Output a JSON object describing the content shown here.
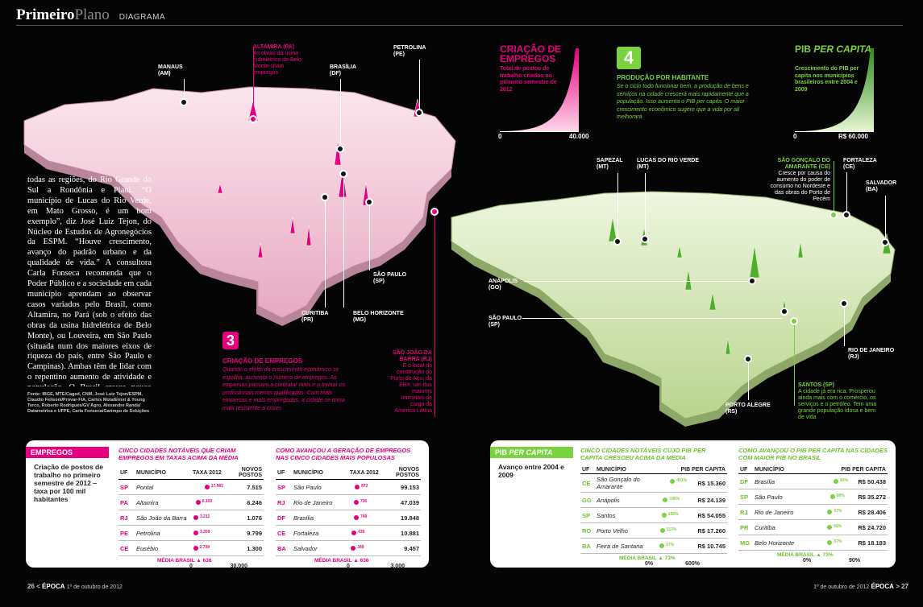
{
  "header": {
    "brand_bold": "Primeiro",
    "brand_light": "Plano",
    "section": "DIAGRAMA"
  },
  "left_map": {
    "labels": [
      {
        "name": "MANAUS",
        "state": "(AM)"
      },
      {
        "name": "ALTAMIRA (PA)",
        "note": "As obras da usina hidrelétrica de Belo Monte criam empregos"
      },
      {
        "name": "BRASÍLIA",
        "state": "(DF)"
      },
      {
        "name": "PETROLINA",
        "state": "(PE)"
      },
      {
        "name": "SÃO PAULO",
        "state": "(SP)"
      },
      {
        "name": "CURITIBA",
        "state": "(PR)"
      },
      {
        "name": "BELO HORIZONTE",
        "state": "(MG)"
      },
      {
        "name": "SÃO JOÃO DA BARRA (RJ)",
        "note": "É o local da construção do Porto do Açu, da EBX, um dos maiores terminais de carga da América Latina"
      }
    ]
  },
  "body_text": "todas as regiões, do Rio Grande do Sul a Rondônia e Piauí. “O município de Lucas do Rio Verde, em Mato Grosso, é um bom exemplo”, diz José Luiz Tejon, do Núcleo de Estudos de Agronegócios da ESPM. “Houve crescimento, avanço do padrão urbano e da qualidade de vida.” A consultora Carla Fonseca recomenda que o Poder Público e a sociedade em cada município aprendam ao observar casos variados pelo Brasil, como Altamira, no Pará (sob o efeito das obras da usina hidrelétrica de Belo Monte), ou Louveira, em São Paulo (situada num dos maiores eixos de riqueza do país, entre São Paulo e Campinas). Ambas têm de lidar com o repentino aumento de atividade e população. O Brasil cresce pouco em 2012, mas tem boa chance de acelerar em 2013. Algumas cidades colherão os melhores frutos desse crescimento.",
  "sources": "Fonte: IBGE, MTE/Caged, CNM, José Luiz Tejon/ESPM, Claudio Felisoni/Provar-FIA, Carlos Mota/Ernst & Young Terco, Roberto Rodrigues/GV Agro, Alexandre Rands/ Datametrica e UFPE, Carla Fonseca/Garimpo de Soluções",
  "step3": {
    "number": "3",
    "title": "CRIAÇÃO DE EMPREGOS",
    "text": "Quando o efeito do crescimento econômico se espalha, aumenta o número de empregos. As empresas passam a contratar mais e a treinar os profissionais menos qualificados. Com mais empresas e mais empregados, a cidade se torna mais resistente a crises"
  },
  "legend_jobs": {
    "title": "CRIAÇÃO DE EMPREGOS",
    "subtitle": "Total de postos de trabalho criados no primeiro semestre de 2012",
    "min": "0",
    "max": "40.000"
  },
  "step4": {
    "number": "4",
    "title": "PRODUÇÃO POR HABITANTE",
    "text": "Se o ciclo todo funcionar bem, a produção de bens e serviços na cidade crescerá mais rapidamente que a população. Isso aumenta o PIB per capita. O maior crescimento econômico sugere que a vida por ali melhorará"
  },
  "legend_pib": {
    "title_a": "PIB ",
    "title_b": "PER CAPITA",
    "subtitle": "Crescimento do PIB per capita nos municípios brasileiros entre 2004 e 2009",
    "min": "0",
    "max": "R$ 60.000"
  },
  "right_map": {
    "labels": [
      {
        "name": "SAPEZAL",
        "state": "(MT)"
      },
      {
        "name": "LUCAS DO RIO VERDE",
        "state": "(MT)"
      },
      {
        "name": "SÃO GONÇALO DO AMARANTE (CE)",
        "note": "Cresce por causa do aumento do poder de consumo no Nordeste e das obras do Porto de Pecém"
      },
      {
        "name": "FORTALEZA",
        "state": "(CE)"
      },
      {
        "name": "SALVADOR",
        "state": "(BA)"
      },
      {
        "name": "ANÁPOLIS",
        "state": "(GO)"
      },
      {
        "name": "SÃO PAULO",
        "state": "(SP)"
      },
      {
        "name": "RIO DE JANEIRO",
        "state": "(RJ)"
      },
      {
        "name": "SANTOS (SP)",
        "note": "A cidade já era rica. Prosperou ainda mais com o comércio, os serviços e o petróleo. Tem uma grande população idosa e bem de vida"
      },
      {
        "name": "PORTO ALEGRE",
        "state": "(RS)"
      }
    ]
  },
  "empregos_panel": {
    "tag": "EMPREGOS",
    "desc": "Criação de postos de trabalho no primeiro semestre de 2012 – taxa por 100 mil habitantes",
    "table1": {
      "title": "CINCO CIDADES NOTÁVEIS QUE CRIAM EMPREGOS EM TAXAS ACIMA DA MÉDIA",
      "headers": [
        "UF",
        "MUNICÍPIO",
        "TAXA 2012",
        "NOVOS POSTOS"
      ],
      "rows": [
        {
          "uf": "SP",
          "city": "Pontal",
          "rate": "17.961",
          "rate_value": 17961,
          "jobs": "7.515"
        },
        {
          "uf": "PA",
          "city": "Altamira",
          "rate": "6.103",
          "rate_value": 6103,
          "jobs": "6.246"
        },
        {
          "uf": "RJ",
          "city": "São João da Barra",
          "rate": "3.211",
          "rate_value": 3211,
          "jobs": "1.076"
        },
        {
          "uf": "PE",
          "city": "Petrolina",
          "rate": "3.209",
          "rate_value": 3209,
          "jobs": "9.799"
        },
        {
          "uf": "CE",
          "city": "Eusébio",
          "rate": "2.709",
          "rate_value": 2709,
          "jobs": "1.300"
        }
      ],
      "avg_label": "MÉDIA BRASIL",
      "avg_value": "636",
      "axis_min": "0",
      "axis_max": "30.000",
      "axis_max_value": 30000
    },
    "table2": {
      "title": "COMO AVANÇOU A GERAÇÃO DE EMPREGOS NAS CINCO CIDADES MAIS POPULOSAS",
      "headers": [
        "UF",
        "MUNICÍPIO",
        "TAXA 2012",
        "NOVOS POSTOS"
      ],
      "rows": [
        {
          "uf": "SP",
          "city": "São Paulo",
          "rate": "872",
          "rate_value": 872,
          "jobs": "99.153"
        },
        {
          "uf": "RJ",
          "city": "Rio de Janeiro",
          "rate": "736",
          "rate_value": 736,
          "jobs": "47.039"
        },
        {
          "uf": "DF",
          "city": "Brasília",
          "rate": "749",
          "rate_value": 749,
          "jobs": "19.848"
        },
        {
          "uf": "CE",
          "city": "Fortaleza",
          "rate": "435",
          "rate_value": 435,
          "jobs": "10.881"
        },
        {
          "uf": "BA",
          "city": "Salvador",
          "rate": "349",
          "rate_value": 349,
          "jobs": "9.457"
        }
      ],
      "avg_label": "MÉDIA BRASIL",
      "avg_value": "636",
      "axis_min": "0",
      "axis_max": "3.000",
      "axis_max_value": 3000
    }
  },
  "pib_panel": {
    "tag_a": "PIB ",
    "tag_b": "PER CAPITA",
    "desc": "Avanço entre 2004 e 2009",
    "table1": {
      "title": "CINCO CIDADES NOTÁVEIS CUJO PIB PER CAPITA CRESCEU ACIMA DA MÉDIA",
      "headers": [
        "UF",
        "MUNICÍPIO",
        "PIB PER CAPITA"
      ],
      "rows": [
        {
          "uf": "CE",
          "city": "São Gonçalo do Amarante",
          "pct": "401%",
          "pct_value": 401,
          "value": "R$ 15.360"
        },
        {
          "uf": "GO",
          "city": "Anápolis",
          "pct": "195%",
          "pct_value": 195,
          "value": "R$ 24.139"
        },
        {
          "uf": "SP",
          "city": "Santos",
          "pct": "156%",
          "pct_value": 156,
          "value": "R$ 54.055"
        },
        {
          "uf": "RO",
          "city": "Porto Velho",
          "pct": "113%",
          "pct_value": 113,
          "value": "R$ 17.260"
        },
        {
          "uf": "BA",
          "city": "Feira de Santana",
          "pct": "97%",
          "pct_value": 97,
          "value": "R$ 10.745"
        }
      ],
      "avg_label": "MÉDIA BRASIL",
      "avg_value": "73%",
      "axis_min": "0%",
      "axis_max": "600%",
      "axis_max_value": 600
    },
    "table2": {
      "title": "COMO AVANÇOU O PIB PER CAPITA NAS CIDADES COM MAIOR PIB NO BRASIL",
      "headers": [
        "UF",
        "MUNICÍPIO",
        "PIB PER CAPITA"
      ],
      "rows": [
        {
          "uf": "DF",
          "city": "Brasília",
          "pct": "83%",
          "pct_value": 83,
          "value": "R$ 50.438"
        },
        {
          "uf": "SP",
          "city": "São Paulo",
          "pct": "68%",
          "pct_value": 68,
          "value": "R$ 35.272"
        },
        {
          "uf": "RJ",
          "city": "Rio de Janeiro",
          "pct": "57%",
          "pct_value": 57,
          "value": "R$ 28.406"
        },
        {
          "uf": "PR",
          "city": "Curitiba",
          "pct": "56%",
          "pct_value": 56,
          "value": "R$ 24.720"
        },
        {
          "uf": "MG",
          "city": "Belo Horizonte",
          "pct": "57%",
          "pct_value": 57,
          "value": "R$ 18.183"
        }
      ],
      "avg_label": "MÉDIA BRASIL",
      "avg_value": "73%",
      "axis_min": "0%",
      "axis_max": "90%",
      "axis_max_value": 90
    }
  },
  "footer": {
    "left_page": "26",
    "left_mag": "ÉPOCA",
    "left_date": "1º de outubro de 2012",
    "right_date": "1º de outubro de 2012",
    "right_mag": "ÉPOCA",
    "right_page": "27"
  },
  "colors": {
    "pink": "#e6007e",
    "green": "#7bd23f",
    "pink_map": "#f3c9d6",
    "green_map": "#d4e6b2"
  }
}
